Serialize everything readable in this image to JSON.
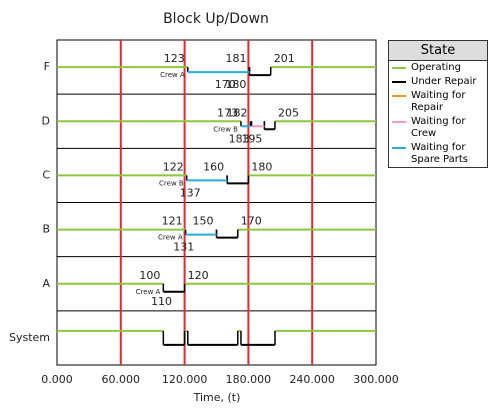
{
  "chart_data": {
    "type": "updown",
    "title": "Block Up/Down",
    "x_label": "Time, (t)",
    "legend_title": "State",
    "xlim": [
      0,
      300
    ],
    "xticks": [
      {
        "value": 0,
        "label": "0.000"
      },
      {
        "value": 60,
        "label": "60.000"
      },
      {
        "value": 120,
        "label": "120.000"
      },
      {
        "value": 180,
        "label": "180.000"
      },
      {
        "value": 240,
        "label": "240.000"
      },
      {
        "value": 300,
        "label": "300.000"
      }
    ],
    "grid": true,
    "grid_color": "#e8262b",
    "series": [
      {
        "name": "Operating",
        "color": "#8dc63f"
      },
      {
        "name": "Under Repair",
        "color": "#000000"
      },
      {
        "name": "Waiting for Repair",
        "color": "#f7941d"
      },
      {
        "name": "Waiting for Crew",
        "color": "#f49ac1"
      },
      {
        "name": "Waiting for Spare Parts",
        "color": "#29abe2"
      }
    ],
    "blocks": [
      {
        "name": "F",
        "crew": "Crew A",
        "intervals": [
          [
            [
              0,
              123
            ],
            [
              201,
              300
            ]
          ],
          [
            [
              181,
              201
            ]
          ],
          [],
          [],
          [
            [
              123,
              181
            ]
          ]
        ],
        "labels_above": [
          123,
          181,
          201
        ],
        "labels_below": [
          170,
          180
        ]
      },
      {
        "name": "D",
        "crew": "Crew B",
        "intervals": [
          [
            [
              0,
              173
            ],
            [
              205,
              300
            ]
          ],
          [
            [
              195,
              205
            ]
          ],
          [],
          [
            [
              183,
              195
            ]
          ],
          [
            [
              173,
              182
            ]
          ]
        ],
        "labels_above": [
          173,
          182,
          205
        ],
        "labels_below": [
          183,
          195
        ]
      },
      {
        "name": "C",
        "crew": "Crew B",
        "intervals": [
          [
            [
              0,
              122
            ],
            [
              180,
              300
            ]
          ],
          [
            [
              160,
              180
            ]
          ],
          [],
          [],
          [
            [
              122,
              160
            ]
          ]
        ],
        "labels_above": [
          122,
          160,
          180
        ],
        "labels_below": [
          137
        ]
      },
      {
        "name": "B",
        "crew": "Crew A",
        "intervals": [
          [
            [
              0,
              121
            ],
            [
              170,
              300
            ]
          ],
          [
            [
              150,
              170
            ]
          ],
          [],
          [],
          [
            [
              121,
              150
            ]
          ]
        ],
        "labels_above": [
          121,
          150,
          170
        ],
        "labels_below": [
          131
        ]
      },
      {
        "name": "A",
        "crew": "Crew A",
        "intervals": [
          [
            [
              0,
              100
            ],
            [
              120,
              300
            ]
          ],
          [
            [
              100,
              120
            ]
          ],
          [],
          [],
          []
        ],
        "labels_above": [
          100,
          120
        ],
        "labels_below": [
          110
        ]
      },
      {
        "name": "System",
        "intervals": [
          [
            [
              0,
              100
            ],
            [
              120,
              123
            ],
            [
              170,
              173
            ],
            [
              205,
              300
            ]
          ],
          [
            [
              100,
              120
            ],
            [
              123,
              170
            ],
            [
              173,
              205
            ]
          ]
        ]
      }
    ]
  }
}
